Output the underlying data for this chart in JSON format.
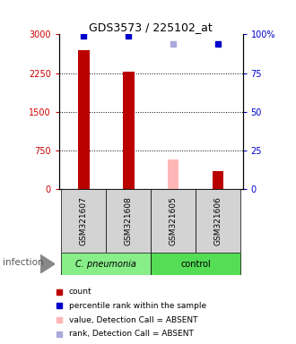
{
  "title": "GDS3573 / 225102_at",
  "samples": [
    "GSM321607",
    "GSM321608",
    "GSM321605",
    "GSM321606"
  ],
  "bar_values_present": [
    2700,
    2280,
    null,
    350
  ],
  "bar_values_absent": [
    null,
    null,
    580,
    null
  ],
  "dot_y_present": [
    2970,
    2970,
    null,
    2820
  ],
  "dot_y_absent": [
    null,
    null,
    2820,
    null
  ],
  "bar_color_present": "#bb0000",
  "bar_color_absent": "#ffb6b6",
  "dot_color_present": "#0000cc",
  "dot_color_absent": "#aaaadd",
  "ylim_left": [
    0,
    3000
  ],
  "ylim_right": [
    0,
    100
  ],
  "yticks_left": [
    0,
    750,
    1500,
    2250,
    3000
  ],
  "yticks_right": [
    0,
    25,
    50,
    75,
    100
  ],
  "ytick_labels_left": [
    "0",
    "750",
    "1500",
    "2250",
    "3000"
  ],
  "ytick_labels_right": [
    "0",
    "25",
    "50",
    "75",
    "100%"
  ],
  "left_tick_color": "#cc0000",
  "right_tick_color": "#0000cc",
  "bar_width": 0.25,
  "sample_box_color": "#d3d3d3",
  "group1_label": "C. pneumonia",
  "group2_label": "control",
  "group1_color": "#88ee88",
  "group2_color": "#55dd55",
  "infection_label": "infection",
  "legend_items": [
    {
      "color": "#bb0000",
      "label": "count"
    },
    {
      "color": "#0000cc",
      "label": "percentile rank within the sample"
    },
    {
      "color": "#ffb6b6",
      "label": "value, Detection Call = ABSENT"
    },
    {
      "color": "#aaaadd",
      "label": "rank, Detection Call = ABSENT"
    }
  ]
}
